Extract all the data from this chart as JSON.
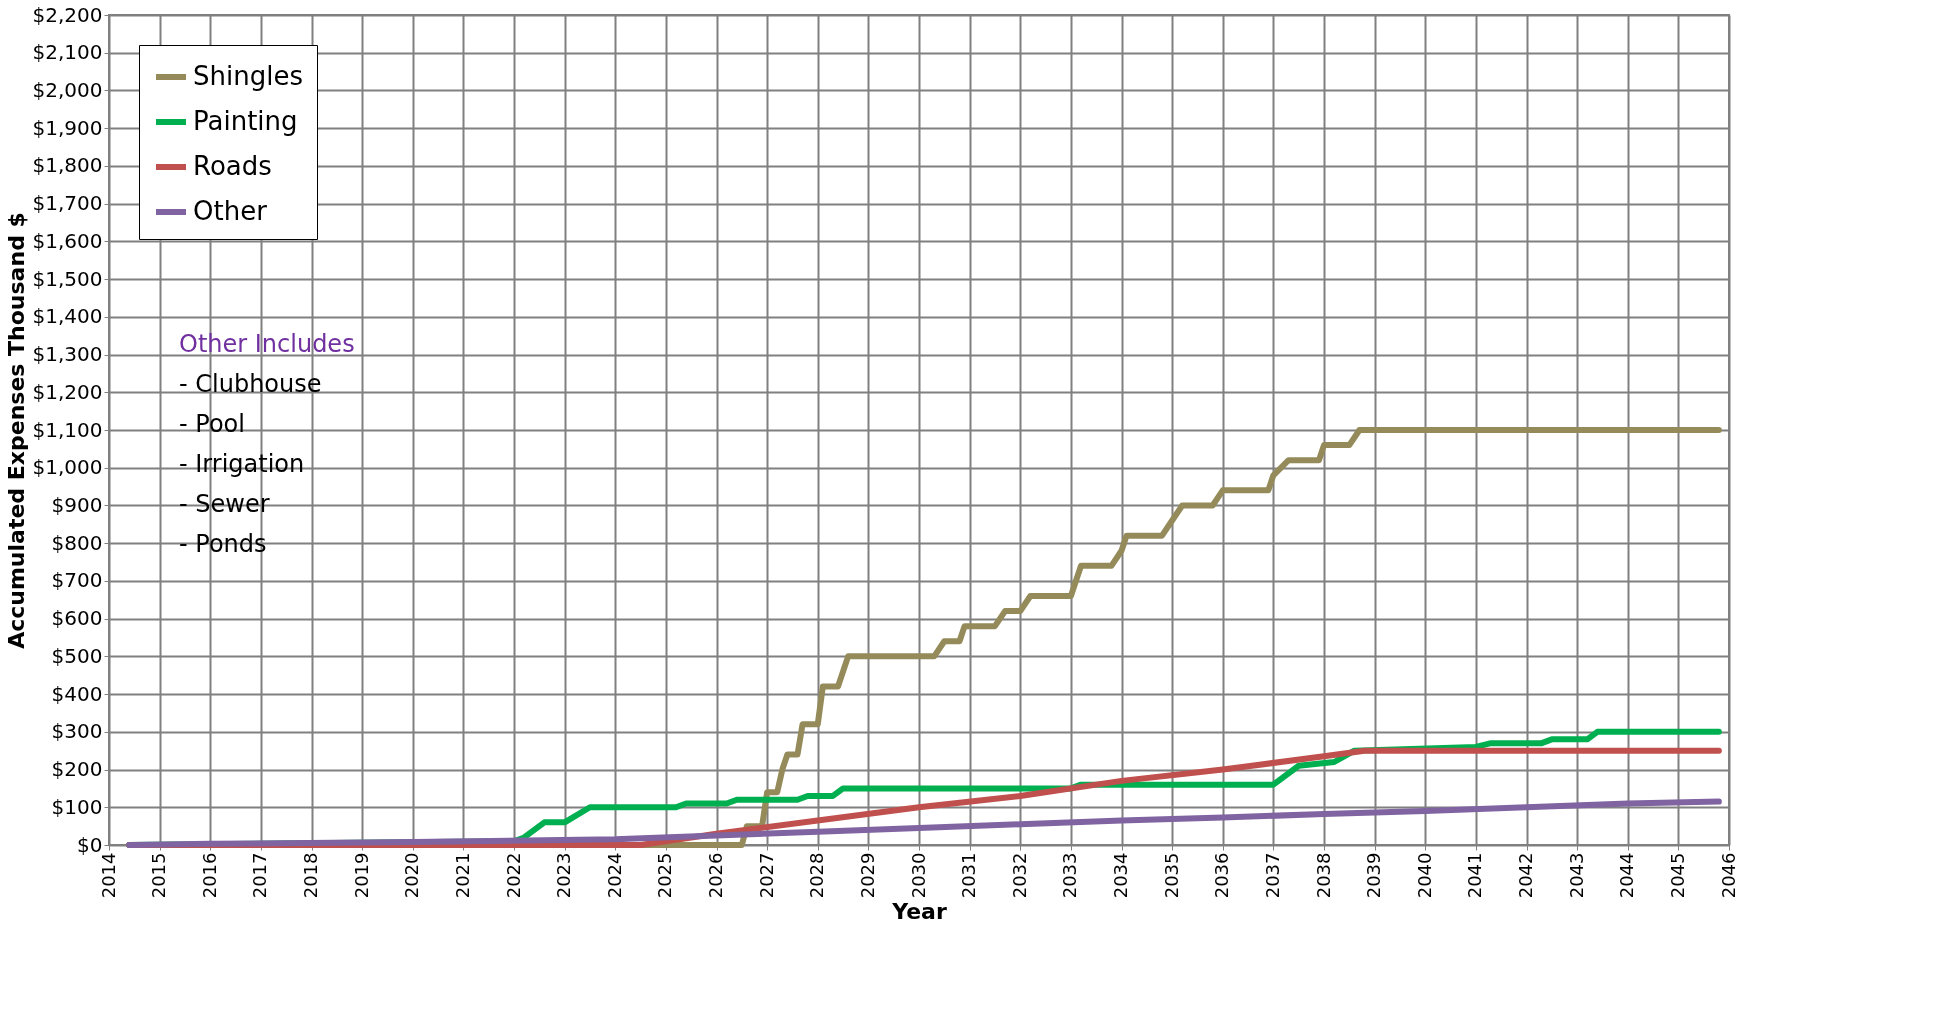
{
  "chart_data": {
    "type": "line",
    "xlabel": "Year",
    "ylabel": "Accumulated Expenses Thousand $",
    "xlim": [
      2014,
      2046
    ],
    "xticks": [
      2014,
      2015,
      2016,
      2017,
      2018,
      2019,
      2020,
      2021,
      2022,
      2023,
      2024,
      2025,
      2026,
      2027,
      2028,
      2029,
      2030,
      2031,
      2032,
      2033,
      2034,
      2035,
      2036,
      2037,
      2038,
      2039,
      2040,
      2041,
      2042,
      2043,
      2044,
      2045,
      2046
    ],
    "ylim": [
      0,
      2200
    ],
    "yticks": [
      {
        "value": 0,
        "label": "$0"
      },
      {
        "value": 100,
        "label": "$100"
      },
      {
        "value": 200,
        "label": "$200"
      },
      {
        "value": 300,
        "label": "$300"
      },
      {
        "value": 400,
        "label": "$400"
      },
      {
        "value": 500,
        "label": "$500"
      },
      {
        "value": 600,
        "label": "$600"
      },
      {
        "value": 700,
        "label": "$700"
      },
      {
        "value": 800,
        "label": "$800"
      },
      {
        "value": 900,
        "label": "$900"
      },
      {
        "value": 1000,
        "label": "$1,000"
      },
      {
        "value": 1100,
        "label": "$1,100"
      },
      {
        "value": 1200,
        "label": "$1,200"
      },
      {
        "value": 1300,
        "label": "$1,300"
      },
      {
        "value": 1400,
        "label": "$1,400"
      },
      {
        "value": 1500,
        "label": "$1,500"
      },
      {
        "value": 1600,
        "label": "$1,600"
      },
      {
        "value": 1700,
        "label": "$1,700"
      },
      {
        "value": 1800,
        "label": "$1,800"
      },
      {
        "value": 1900,
        "label": "$1,900"
      },
      {
        "value": 2000,
        "label": "$2,000"
      },
      {
        "value": 2100,
        "label": "$2,100"
      },
      {
        "value": 2200,
        "label": "$2,200"
      }
    ],
    "grid": true,
    "legend": "top left",
    "marker": "none",
    "line_style": "solid",
    "series": [
      {
        "name": "Shingles",
        "color": "#958b5a",
        "x": [
          2014.4,
          2026.5,
          2026.6,
          2026.9,
          2027.0,
          2027.2,
          2027.3,
          2027.4,
          2027.6,
          2027.7,
          2028.0,
          2028.1,
          2028.4,
          2028.6,
          2030.3,
          2030.5,
          2030.8,
          2030.9,
          2031.5,
          2031.7,
          2032.0,
          2032.2,
          2033.0,
          2033.2,
          2033.8,
          2034.0,
          2034.1,
          2034.8,
          2035.0,
          2035.2,
          2035.8,
          2036.0,
          2036.9,
          2037.0,
          2037.3,
          2037.9,
          2038.0,
          2038.5,
          2038.7,
          2045.8
        ],
        "values": [
          0,
          0,
          50,
          50,
          140,
          140,
          200,
          240,
          240,
          320,
          320,
          420,
          420,
          500,
          500,
          540,
          540,
          580,
          580,
          620,
          620,
          660,
          660,
          740,
          740,
          780,
          820,
          820,
          860,
          900,
          900,
          940,
          940,
          980,
          1020,
          1020,
          1060,
          1060,
          1100,
          1100
        ]
      },
      {
        "name": "Painting",
        "color": "#00b050",
        "x": [
          2014.4,
          2022.0,
          2022.2,
          2022.6,
          2023.0,
          2023.5,
          2025.2,
          2025.4,
          2026.2,
          2026.4,
          2027.6,
          2027.8,
          2028.3,
          2028.5,
          2033.0,
          2033.2,
          2037.0,
          2037.5,
          2038.2,
          2038.6,
          2041.0,
          2041.3,
          2042.3,
          2042.5,
          2043.2,
          2043.4,
          2045.8
        ],
        "values": [
          0,
          10,
          20,
          60,
          60,
          100,
          100,
          110,
          110,
          120,
          120,
          130,
          130,
          150,
          150,
          160,
          160,
          210,
          220,
          250,
          260,
          270,
          270,
          280,
          280,
          300,
          300
        ]
      },
      {
        "name": "Roads",
        "color": "#c0504d",
        "x": [
          2014.4,
          2024.5,
          2026.0,
          2028.0,
          2030.0,
          2032.0,
          2034.0,
          2036.0,
          2038.0,
          2038.8,
          2045.8
        ],
        "values": [
          0,
          0,
          30,
          65,
          100,
          130,
          170,
          200,
          235,
          250,
          250
        ]
      },
      {
        "name": "Other",
        "color": "#8064a2",
        "x": [
          2014.4,
          2016.0,
          2020.0,
          2024.0,
          2026.0,
          2028.0,
          2030.0,
          2032.0,
          2034.0,
          2036.0,
          2038.0,
          2040.0,
          2042.0,
          2044.0,
          2045.8
        ],
        "values": [
          0,
          3,
          8,
          15,
          25,
          35,
          45,
          55,
          65,
          73,
          82,
          90,
          100,
          110,
          115
        ]
      }
    ],
    "annotations": [
      "Other Includes",
      " - Clubhouse",
      " - Pool",
      " - Irrigation",
      " - Sewer",
      " - Ponds"
    ]
  }
}
